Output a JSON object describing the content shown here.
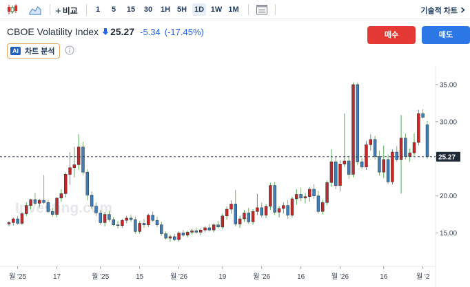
{
  "toolbar": {
    "compare_label": "비교",
    "intervals": [
      "1",
      "5",
      "15",
      "30",
      "1H",
      "5H",
      "1D",
      "1W",
      "1M"
    ],
    "active_interval": "1D",
    "technical_label": "기술적 차트",
    "icons": [
      "candlestick-icon",
      "area-chart-icon",
      "plus-icon",
      "calendar-icon",
      "chevron-right-icon"
    ]
  },
  "instrument": {
    "name": "CBOE Volatility Index",
    "price": "25.27",
    "change": "-5.34",
    "change_pct": "(-17.45%)",
    "direction_icon": "down-arrow-icon"
  },
  "actions": {
    "buy_label": "매수",
    "sell_label": "매도"
  },
  "analysis": {
    "badge": "AI",
    "label": "차트 분석"
  },
  "colors": {
    "up": "#c62828",
    "down": "#3d7fb8",
    "accent": "#2563eb",
    "buy": "#e53935",
    "sell": "#2b77e5"
  },
  "chart_data": {
    "type": "candlestick",
    "watermark": "Investing.com",
    "current_price_label": "25.27",
    "current_price": 25.27,
    "ylim": [
      10.5,
      37.5
    ],
    "y_ticks": [
      15,
      20,
      25,
      30,
      35
    ],
    "y_tick_labels": [
      "15.00",
      "20.00",
      "25.00",
      "30.00",
      "35.00"
    ],
    "x_tick_labels": [
      "월 '25",
      "17",
      "월 '25",
      "15",
      "월 '26",
      "19",
      "월 '26",
      "16",
      "월 '26",
      "16",
      "월 '2"
    ],
    "candles": [
      {
        "o": 16.2,
        "h": 16.6,
        "l": 15.9,
        "c": 16.4
      },
      {
        "o": 16.4,
        "h": 17.1,
        "l": 16.0,
        "c": 16.9
      },
      {
        "o": 16.9,
        "h": 17.3,
        "l": 16.1,
        "c": 16.3
      },
      {
        "o": 16.3,
        "h": 17.8,
        "l": 16.1,
        "c": 17.6
      },
      {
        "o": 17.6,
        "h": 19.1,
        "l": 17.3,
        "c": 18.7
      },
      {
        "o": 18.7,
        "h": 19.6,
        "l": 18.2,
        "c": 19.5
      },
      {
        "o": 19.5,
        "h": 20.4,
        "l": 18.8,
        "c": 19.0
      },
      {
        "o": 19.0,
        "h": 19.6,
        "l": 18.4,
        "c": 19.4
      },
      {
        "o": 19.4,
        "h": 22.8,
        "l": 18.9,
        "c": 19.1
      },
      {
        "o": 19.1,
        "h": 19.5,
        "l": 17.7,
        "c": 17.9
      },
      {
        "o": 17.9,
        "h": 18.4,
        "l": 17.2,
        "c": 17.5
      },
      {
        "o": 17.5,
        "h": 19.8,
        "l": 17.1,
        "c": 19.7
      },
      {
        "o": 19.7,
        "h": 20.9,
        "l": 19.2,
        "c": 20.3
      },
      {
        "o": 20.3,
        "h": 23.2,
        "l": 19.8,
        "c": 22.9
      },
      {
        "o": 22.9,
        "h": 25.9,
        "l": 21.5,
        "c": 23.8
      },
      {
        "o": 23.8,
        "h": 26.6,
        "l": 22.5,
        "c": 24.2
      },
      {
        "o": 24.2,
        "h": 28.3,
        "l": 23.5,
        "c": 26.6
      },
      {
        "o": 26.6,
        "h": 27.3,
        "l": 22.8,
        "c": 23.2
      },
      {
        "o": 23.2,
        "h": 23.6,
        "l": 19.4,
        "c": 20.1
      },
      {
        "o": 20.1,
        "h": 20.6,
        "l": 18.2,
        "c": 18.6
      },
      {
        "o": 18.6,
        "h": 19.1,
        "l": 17.3,
        "c": 17.7
      },
      {
        "o": 17.7,
        "h": 18.1,
        "l": 16.1,
        "c": 16.4
      },
      {
        "o": 16.4,
        "h": 17.8,
        "l": 15.9,
        "c": 17.5
      },
      {
        "o": 17.5,
        "h": 18.0,
        "l": 16.5,
        "c": 16.8
      },
      {
        "o": 16.8,
        "h": 17.2,
        "l": 15.9,
        "c": 16.1
      },
      {
        "o": 16.1,
        "h": 16.6,
        "l": 15.6,
        "c": 16.0
      },
      {
        "o": 16.0,
        "h": 16.9,
        "l": 15.7,
        "c": 16.7
      },
      {
        "o": 16.7,
        "h": 17.3,
        "l": 16.3,
        "c": 17.0
      },
      {
        "o": 17.0,
        "h": 17.5,
        "l": 16.5,
        "c": 16.8
      },
      {
        "o": 16.8,
        "h": 17.2,
        "l": 14.9,
        "c": 15.2
      },
      {
        "o": 15.2,
        "h": 16.6,
        "l": 14.9,
        "c": 16.3
      },
      {
        "o": 16.3,
        "h": 16.9,
        "l": 15.7,
        "c": 16.1
      },
      {
        "o": 16.1,
        "h": 17.6,
        "l": 15.8,
        "c": 17.4
      },
      {
        "o": 17.4,
        "h": 17.9,
        "l": 16.5,
        "c": 16.7
      },
      {
        "o": 16.7,
        "h": 17.2,
        "l": 15.8,
        "c": 16.1
      },
      {
        "o": 16.1,
        "h": 16.5,
        "l": 14.6,
        "c": 14.9
      },
      {
        "o": 14.9,
        "h": 15.2,
        "l": 14.1,
        "c": 14.3
      },
      {
        "o": 14.3,
        "h": 14.8,
        "l": 13.8,
        "c": 14.5
      },
      {
        "o": 14.5,
        "h": 14.9,
        "l": 13.9,
        "c": 14.1
      },
      {
        "o": 14.1,
        "h": 15.2,
        "l": 13.8,
        "c": 15.0
      },
      {
        "o": 15.0,
        "h": 15.4,
        "l": 14.5,
        "c": 14.7
      },
      {
        "o": 14.7,
        "h": 15.3,
        "l": 14.4,
        "c": 15.1
      },
      {
        "o": 15.1,
        "h": 15.5,
        "l": 14.8,
        "c": 15.3
      },
      {
        "o": 15.3,
        "h": 15.7,
        "l": 14.9,
        "c": 15.1
      },
      {
        "o": 15.1,
        "h": 15.6,
        "l": 14.7,
        "c": 15.4
      },
      {
        "o": 15.4,
        "h": 15.9,
        "l": 15.1,
        "c": 15.7
      },
      {
        "o": 15.7,
        "h": 16.2,
        "l": 15.2,
        "c": 15.4
      },
      {
        "o": 15.4,
        "h": 16.3,
        "l": 15.1,
        "c": 16.1
      },
      {
        "o": 16.1,
        "h": 16.6,
        "l": 15.6,
        "c": 15.8
      },
      {
        "o": 15.8,
        "h": 17.6,
        "l": 15.5,
        "c": 17.3
      },
      {
        "o": 17.3,
        "h": 18.6,
        "l": 16.8,
        "c": 18.2
      },
      {
        "o": 18.2,
        "h": 19.4,
        "l": 17.6,
        "c": 18.9
      },
      {
        "o": 18.9,
        "h": 20.8,
        "l": 15.9,
        "c": 16.2
      },
      {
        "o": 16.2,
        "h": 17.3,
        "l": 15.7,
        "c": 16.9
      },
      {
        "o": 16.9,
        "h": 18.1,
        "l": 16.5,
        "c": 17.7
      },
      {
        "o": 17.7,
        "h": 18.4,
        "l": 16.2,
        "c": 16.5
      },
      {
        "o": 16.5,
        "h": 18.2,
        "l": 16.1,
        "c": 17.9
      },
      {
        "o": 17.9,
        "h": 20.3,
        "l": 17.4,
        "c": 18.4
      },
      {
        "o": 18.4,
        "h": 19.1,
        "l": 17.1,
        "c": 17.4
      },
      {
        "o": 17.4,
        "h": 18.9,
        "l": 17.0,
        "c": 18.6
      },
      {
        "o": 18.6,
        "h": 21.8,
        "l": 18.1,
        "c": 21.4
      },
      {
        "o": 21.4,
        "h": 21.9,
        "l": 17.4,
        "c": 17.8
      },
      {
        "o": 17.8,
        "h": 18.6,
        "l": 17.1,
        "c": 18.3
      },
      {
        "o": 18.3,
        "h": 19.1,
        "l": 17.6,
        "c": 18.7
      },
      {
        "o": 18.7,
        "h": 19.4,
        "l": 16.9,
        "c": 17.4
      },
      {
        "o": 17.4,
        "h": 19.9,
        "l": 17.1,
        "c": 19.6
      },
      {
        "o": 19.6,
        "h": 20.9,
        "l": 18.8,
        "c": 20.2
      },
      {
        "o": 20.2,
        "h": 21.1,
        "l": 19.3,
        "c": 19.7
      },
      {
        "o": 19.7,
        "h": 20.4,
        "l": 19.0,
        "c": 19.9
      },
      {
        "o": 19.9,
        "h": 21.2,
        "l": 19.2,
        "c": 20.9
      },
      {
        "o": 20.9,
        "h": 21.6,
        "l": 19.6,
        "c": 20.0
      },
      {
        "o": 20.0,
        "h": 20.7,
        "l": 17.6,
        "c": 17.9
      },
      {
        "o": 17.9,
        "h": 19.5,
        "l": 17.5,
        "c": 19.1
      },
      {
        "o": 19.1,
        "h": 22.1,
        "l": 18.7,
        "c": 21.8
      },
      {
        "o": 21.8,
        "h": 26.3,
        "l": 21.2,
        "c": 24.6
      },
      {
        "o": 24.6,
        "h": 25.3,
        "l": 20.9,
        "c": 21.4
      },
      {
        "o": 21.4,
        "h": 24.8,
        "l": 20.6,
        "c": 24.3
      },
      {
        "o": 24.3,
        "h": 31.1,
        "l": 23.9,
        "c": 24.7
      },
      {
        "o": 24.7,
        "h": 25.4,
        "l": 22.3,
        "c": 22.9
      },
      {
        "o": 22.9,
        "h": 35.3,
        "l": 22.5,
        "c": 35.0
      },
      {
        "o": 35.0,
        "h": 35.3,
        "l": 24.1,
        "c": 24.6
      },
      {
        "o": 24.6,
        "h": 25.1,
        "l": 23.6,
        "c": 23.9
      },
      {
        "o": 23.9,
        "h": 27.4,
        "l": 23.5,
        "c": 26.9
      },
      {
        "o": 26.9,
        "h": 28.3,
        "l": 26.1,
        "c": 27.6
      },
      {
        "o": 27.6,
        "h": 28.1,
        "l": 24.9,
        "c": 25.3
      },
      {
        "o": 25.3,
        "h": 26.1,
        "l": 22.7,
        "c": 23.2
      },
      {
        "o": 23.2,
        "h": 26.8,
        "l": 22.4,
        "c": 24.9
      },
      {
        "o": 24.9,
        "h": 25.6,
        "l": 21.6,
        "c": 21.9
      },
      {
        "o": 21.9,
        "h": 26.3,
        "l": 21.5,
        "c": 25.9
      },
      {
        "o": 25.9,
        "h": 26.7,
        "l": 24.6,
        "c": 24.9
      },
      {
        "o": 24.9,
        "h": 30.9,
        "l": 20.3,
        "c": 27.8
      },
      {
        "o": 27.8,
        "h": 28.4,
        "l": 24.9,
        "c": 25.3
      },
      {
        "o": 25.3,
        "h": 26.4,
        "l": 24.6,
        "c": 25.8
      },
      {
        "o": 25.8,
        "h": 28.4,
        "l": 25.4,
        "c": 27.2
      },
      {
        "o": 27.2,
        "h": 31.6,
        "l": 26.8,
        "c": 31.1
      },
      {
        "o": 31.1,
        "h": 31.7,
        "l": 30.4,
        "c": 30.6
      },
      {
        "o": 29.6,
        "h": 30.1,
        "l": 25.0,
        "c": 25.27
      }
    ]
  }
}
